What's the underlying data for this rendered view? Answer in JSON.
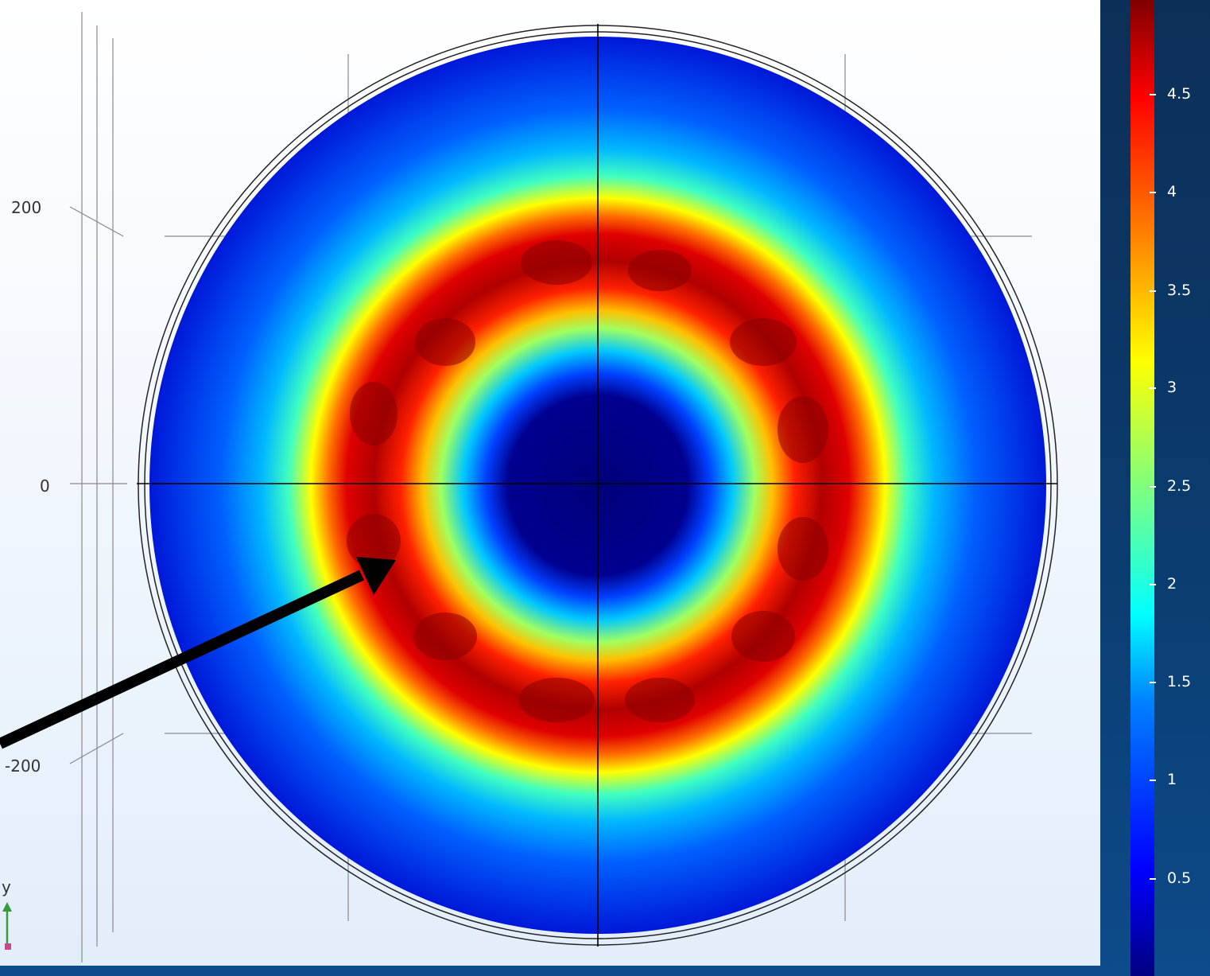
{
  "axes": {
    "y_tick_labels": [
      "200",
      "0",
      "-200"
    ],
    "triad_label": "y"
  },
  "colorbar": {
    "tick_labels": [
      "4.5",
      "4",
      "3.5",
      "3",
      "2.5",
      "2",
      "1.5",
      "1",
      "0.5"
    ],
    "tick_values": [
      4.5,
      4,
      3.5,
      3,
      2.5,
      2,
      1.5,
      1,
      0.5
    ]
  },
  "colors": {
    "field_low": "#00008f",
    "field_mid": "#00ffff",
    "field_high": "#800000",
    "annotation_arrow": "#000000"
  }
}
